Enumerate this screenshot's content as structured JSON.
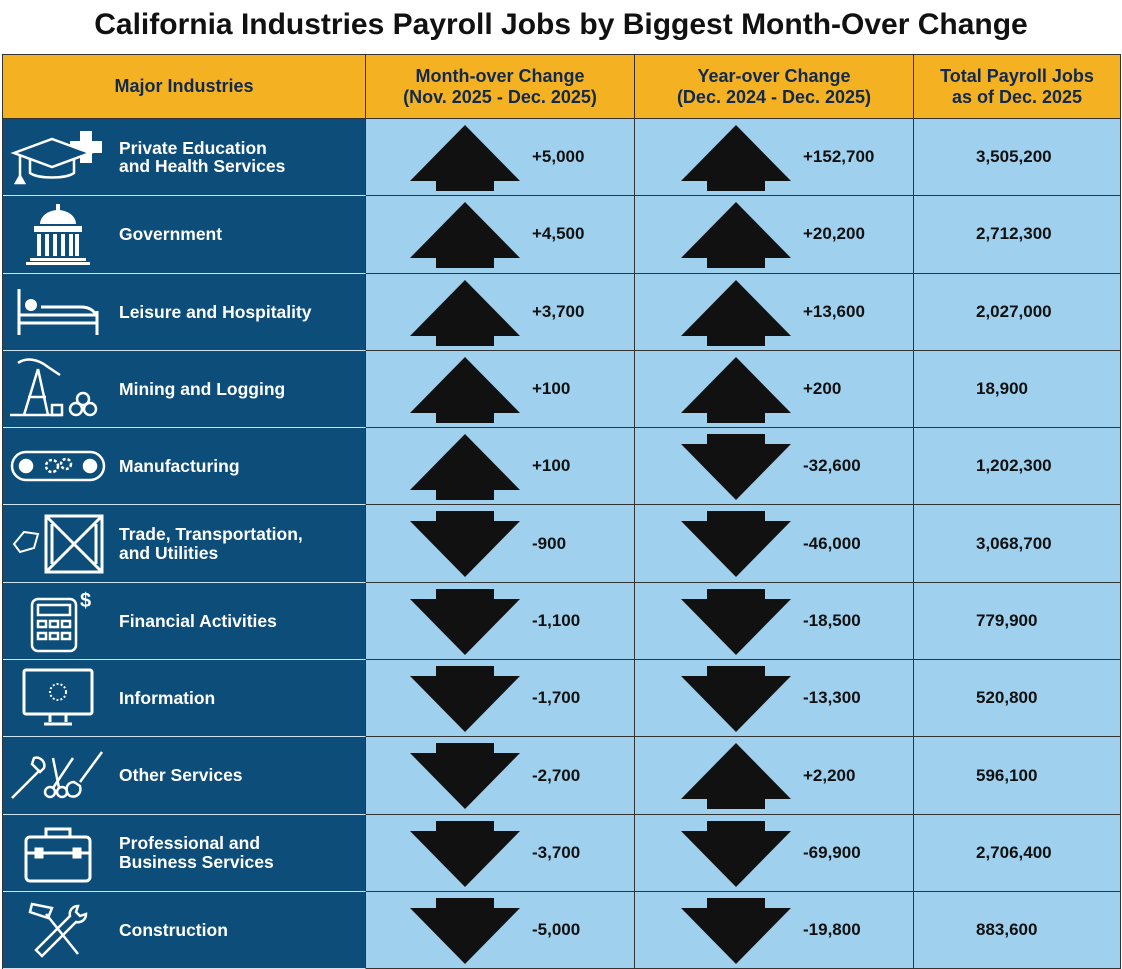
{
  "title": "California Industries Payroll Jobs by Biggest Month-Over Change",
  "headers": {
    "industry": "Major Industries",
    "mom_line1": "Month-over Change",
    "mom_line2": "(Nov. 2025 - Dec. 2025)",
    "yoy_line1": "Year-over Change",
    "yoy_line2": "(Dec. 2024 - Dec. 2025)",
    "total_line1": "Total Payroll Jobs",
    "total_line2": "as of Dec. 2025"
  },
  "rows": [
    {
      "name_line1": "Private Education",
      "name_line2": "and Health Services",
      "icon": "graduation-cap-medical-cross-icon",
      "mom": "+5,000",
      "mom_dir": "up",
      "yoy": "+152,700",
      "yoy_dir": "up",
      "total": "3,505,200"
    },
    {
      "name_line1": "Government",
      "name_line2": "",
      "icon": "capitol-building-icon",
      "mom": "+4,500",
      "mom_dir": "up",
      "yoy": "+20,200",
      "yoy_dir": "up",
      "total": "2,712,300"
    },
    {
      "name_line1": "Leisure and Hospitality",
      "name_line2": "",
      "icon": "bed-icon",
      "mom": "+3,700",
      "mom_dir": "up",
      "yoy": "+13,600",
      "yoy_dir": "up",
      "total": "2,027,000"
    },
    {
      "name_line1": "Mining and Logging",
      "name_line2": "",
      "icon": "oil-pump-logs-icon",
      "mom": "+100",
      "mom_dir": "up",
      "yoy": "+200",
      "yoy_dir": "up",
      "total": "18,900"
    },
    {
      "name_line1": "Manufacturing",
      "name_line2": "",
      "icon": "conveyor-gears-icon",
      "mom": "+100",
      "mom_dir": "up",
      "yoy": "-32,600",
      "yoy_dir": "down",
      "total": "1,202,300"
    },
    {
      "name_line1": "Trade, Transportation,",
      "name_line2": "and Utilities",
      "icon": "crate-tag-icon",
      "mom": "-900",
      "mom_dir": "down",
      "yoy": "-46,000",
      "yoy_dir": "down",
      "total": "3,068,700"
    },
    {
      "name_line1": "Financial Activities",
      "name_line2": "",
      "icon": "calculator-dollar-icon",
      "mom": "-1,100",
      "mom_dir": "down",
      "yoy": "-18,500",
      "yoy_dir": "down",
      "total": "779,900"
    },
    {
      "name_line1": "Information",
      "name_line2": "",
      "icon": "computer-monitor-icon",
      "mom": "-1,700",
      "mom_dir": "down",
      "yoy": "-13,300",
      "yoy_dir": "down",
      "total": "520,800"
    },
    {
      "name_line1": "Other Services",
      "name_line2": "",
      "icon": "wrench-scissors-brush-icon",
      "mom": "-2,700",
      "mom_dir": "down",
      "yoy": "+2,200",
      "yoy_dir": "up",
      "total": "596,100"
    },
    {
      "name_line1": "Professional and",
      "name_line2": "Business Services",
      "icon": "briefcase-icon",
      "mom": "-3,700",
      "mom_dir": "down",
      "yoy": "-69,900",
      "yoy_dir": "down",
      "total": "2,706,400"
    },
    {
      "name_line1": "Construction",
      "name_line2": "",
      "icon": "hammer-wrench-icon",
      "mom": "-5,000",
      "mom_dir": "down",
      "yoy": "-19,800",
      "yoy_dir": "down",
      "total": "883,600"
    }
  ],
  "colors": {
    "header_bg": "#f4b223",
    "industry_bg": "#0c4d7a",
    "value_bg": "#9fd1ee",
    "arrow": "#111111"
  }
}
